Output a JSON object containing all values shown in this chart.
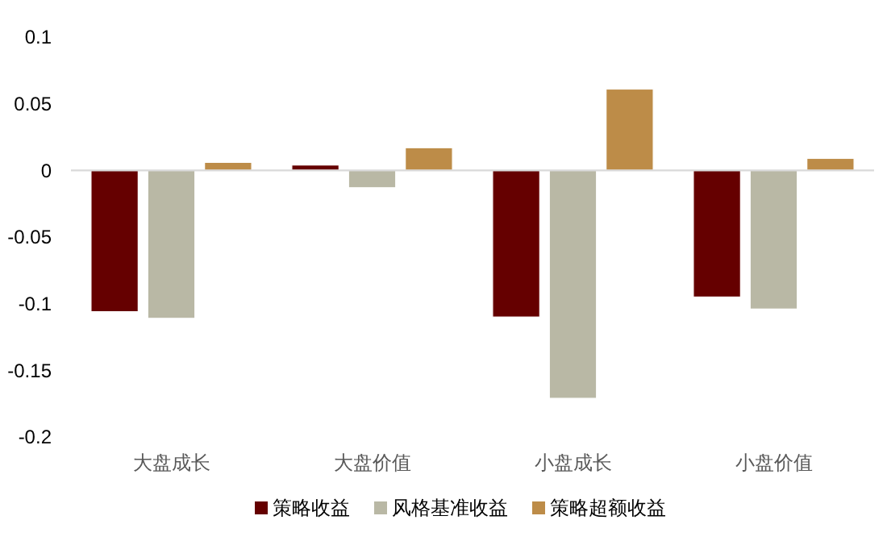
{
  "chart_data": {
    "type": "bar",
    "categories": [
      "大盘成长",
      "大盘价值",
      "小盘成长",
      "小盘价值"
    ],
    "series": [
      {
        "name": "策略收益",
        "color": "#650000",
        "values": [
          -0.106,
          0.004,
          -0.11,
          -0.095
        ]
      },
      {
        "name": "风格基准收益",
        "color": "#b9b8a5",
        "values": [
          -0.111,
          -0.013,
          -0.171,
          -0.104
        ]
      },
      {
        "name": "策略超额收益",
        "color": "#bd8c48",
        "values": [
          0.006,
          0.017,
          0.061,
          0.009
        ]
      }
    ],
    "ylim": [
      -0.2,
      0.1
    ],
    "yticks": [
      -0.2,
      -0.15,
      -0.1,
      -0.05,
      0,
      0.05,
      0.1
    ],
    "legend": "bottom"
  }
}
